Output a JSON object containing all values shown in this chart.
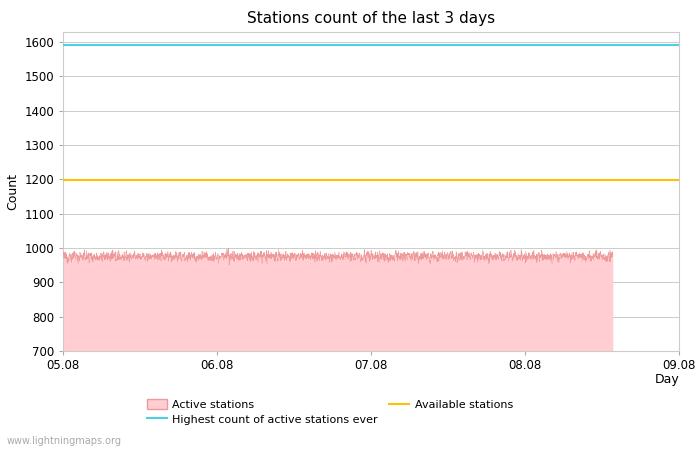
{
  "title": "Stations count of the last 3 days",
  "xlabel": "Day",
  "ylabel": "Count",
  "ylim": [
    700,
    1630
  ],
  "yticks": [
    700,
    800,
    900,
    1000,
    1100,
    1200,
    1300,
    1400,
    1500,
    1600
  ],
  "x_start": 0.0,
  "x_end": 4.0,
  "x_ticks": [
    0,
    1,
    2,
    3,
    4
  ],
  "x_tick_labels": [
    "05.08",
    "06.08",
    "07.08",
    "08.08",
    "09.08"
  ],
  "highest_ever_value": 1590,
  "highest_ever_color": "#4dd0e1",
  "available_stations_value": 1197,
  "available_stations_color": "#FFC107",
  "active_stations_mean": 975,
  "active_stations_noise": 12,
  "active_stations_fill_color": "#FFCDD2",
  "active_stations_line_color": "#EF9A9A",
  "active_stations_x_end": 3.57,
  "background_color": "#ffffff",
  "grid_color": "#cccccc",
  "watermark": "www.lightningmaps.org",
  "watermark_color": "#aaaaaa",
  "legend_labels": [
    "Active stations",
    "Highest count of active stations ever",
    "Available stations"
  ],
  "title_fontsize": 11,
  "axis_label_fontsize": 9,
  "tick_fontsize": 8.5
}
